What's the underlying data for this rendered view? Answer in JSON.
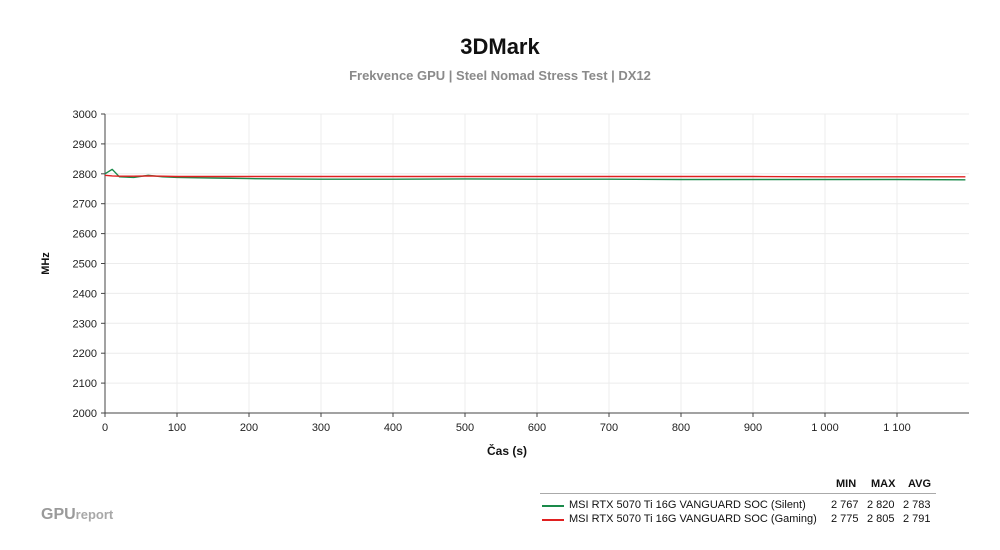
{
  "chart_data": {
    "type": "line",
    "title": "3DMark",
    "subtitle": "Frekvence GPU | Steel Nomad Stress Test | DX12",
    "xlabel": "Čas (s)",
    "ylabel": "MHz",
    "xlim": [
      0,
      1200
    ],
    "ylim": [
      2000,
      3000
    ],
    "x_ticks": [
      0,
      100,
      200,
      300,
      400,
      500,
      600,
      700,
      800,
      900,
      1000,
      1100
    ],
    "x_tick_labels": [
      "0",
      "100",
      "200",
      "300",
      "400",
      "500",
      "600",
      "700",
      "800",
      "900",
      "1 000",
      "1 100"
    ],
    "y_ticks": [
      2000,
      2100,
      2200,
      2300,
      2400,
      2500,
      2600,
      2700,
      2800,
      2900,
      3000
    ],
    "y_tick_labels": [
      "2000",
      "2100",
      "2200",
      "2300",
      "2400",
      "2500",
      "2600",
      "2700",
      "2800",
      "2900",
      "3000"
    ],
    "grid": true,
    "legend_position": "bottom-right",
    "legend_headers": [
      "MIN",
      "MAX",
      "AVG"
    ],
    "series": [
      {
        "name": "MSI RTX 5070 Ti 16G VANGUARD SOC (Silent)",
        "color": "#1a8a4a",
        "min": "2 767",
        "max": "2 820",
        "avg": "2 783",
        "x": [
          0,
          10,
          20,
          40,
          60,
          80,
          100,
          150,
          200,
          300,
          400,
          500,
          600,
          700,
          800,
          900,
          1000,
          1100,
          1195
        ],
        "y": [
          2800,
          2815,
          2790,
          2788,
          2795,
          2790,
          2788,
          2786,
          2784,
          2782,
          2782,
          2783,
          2782,
          2782,
          2781,
          2781,
          2781,
          2781,
          2780
        ]
      },
      {
        "name": "MSI RTX 5070 Ti 16G VANGUARD SOC (Gaming)",
        "color": "#e02020",
        "min": "2 775",
        "max": "2 805",
        "avg": "2 791",
        "x": [
          0,
          10,
          20,
          40,
          60,
          80,
          100,
          150,
          200,
          300,
          400,
          500,
          600,
          700,
          800,
          900,
          1000,
          1100,
          1195
        ],
        "y": [
          2795,
          2793,
          2792,
          2792,
          2793,
          2792,
          2791,
          2791,
          2791,
          2791,
          2791,
          2791,
          2791,
          2791,
          2791,
          2791,
          2790,
          2790,
          2790
        ]
      }
    ]
  },
  "branding": {
    "logo_main": "GPU",
    "logo_small": "report"
  }
}
